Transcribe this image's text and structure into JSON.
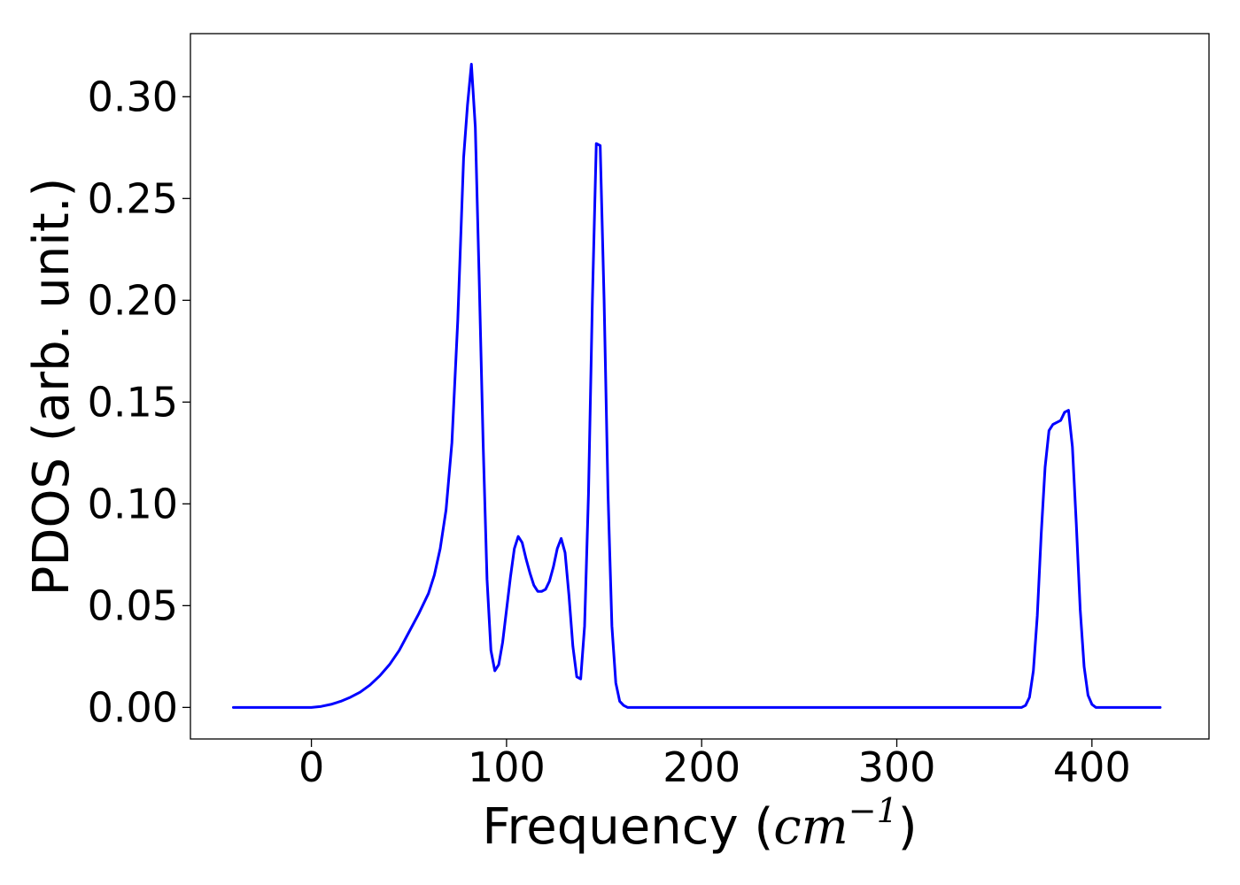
{
  "chart_data": {
    "type": "line",
    "xlabel_prefix": "Frequency (",
    "xlabel_math_base": "cm",
    "xlabel_math_exp": "−1",
    "xlabel_suffix": ")",
    "ylabel": "PDOS (arb. unit.)",
    "xlim": [
      -62,
      460
    ],
    "ylim": [
      -0.0155,
      0.331
    ],
    "xticks": [
      0,
      100,
      200,
      300,
      400
    ],
    "xtick_labels": [
      "0",
      "100",
      "200",
      "300",
      "400"
    ],
    "yticks": [
      0.0,
      0.05,
      0.1,
      0.15,
      0.2,
      0.25,
      0.3
    ],
    "ytick_labels": [
      "0.00",
      "0.05",
      "0.10",
      "0.15",
      "0.20",
      "0.25",
      "0.30"
    ],
    "grid": false,
    "series": [
      {
        "color": "#0000ff",
        "x": [
          -40,
          -20,
          0,
          5,
          10,
          15,
          20,
          25,
          30,
          35,
          40,
          45,
          50,
          55,
          60,
          63,
          66,
          69,
          72,
          75,
          78,
          80,
          82,
          84,
          86,
          88,
          90,
          92,
          94,
          96,
          98,
          100,
          102,
          104,
          106,
          108,
          110,
          112,
          114,
          116,
          118,
          120,
          122,
          124,
          126,
          128,
          130,
          132,
          134,
          136,
          138,
          140,
          142,
          144,
          146,
          148,
          150,
          152,
          154,
          156,
          158,
          160,
          162,
          164,
          166,
          168,
          170,
          172,
          174,
          176,
          178,
          180,
          182,
          185,
          190,
          200,
          250,
          300,
          350,
          364,
          366,
          368,
          370,
          372,
          374,
          376,
          378,
          380,
          382,
          384,
          386,
          388,
          390,
          392,
          394,
          396,
          398,
          400,
          402,
          404,
          406,
          408,
          410,
          415,
          420,
          435
        ],
        "y": [
          0.0,
          0.0,
          0.0,
          0.0005,
          0.0015,
          0.003,
          0.005,
          0.0075,
          0.011,
          0.0155,
          0.021,
          0.028,
          0.037,
          0.046,
          0.056,
          0.065,
          0.078,
          0.097,
          0.13,
          0.19,
          0.27,
          0.296,
          0.316,
          0.285,
          0.21,
          0.13,
          0.063,
          0.028,
          0.018,
          0.021,
          0.032,
          0.048,
          0.064,
          0.078,
          0.084,
          0.081,
          0.073,
          0.066,
          0.06,
          0.057,
          0.057,
          0.058,
          0.062,
          0.069,
          0.078,
          0.083,
          0.076,
          0.055,
          0.03,
          0.015,
          0.014,
          0.04,
          0.105,
          0.2,
          0.277,
          0.276,
          0.2,
          0.105,
          0.04,
          0.012,
          0.003,
          0.001,
          0.0,
          0.0,
          0.0,
          0.0,
          0.0,
          0.0,
          0.0,
          0.0,
          0.0,
          0.0,
          0.0,
          0.0,
          0.0,
          0.0,
          0.0,
          0.0,
          0.0,
          0.0,
          0.001,
          0.005,
          0.018,
          0.045,
          0.085,
          0.118,
          0.136,
          0.139,
          0.14,
          0.141,
          0.145,
          0.146,
          0.128,
          0.09,
          0.048,
          0.02,
          0.006,
          0.0015,
          0.0,
          0.0,
          0.0,
          0.0,
          0.0,
          0.0,
          0.0,
          0.0
        ]
      }
    ]
  }
}
